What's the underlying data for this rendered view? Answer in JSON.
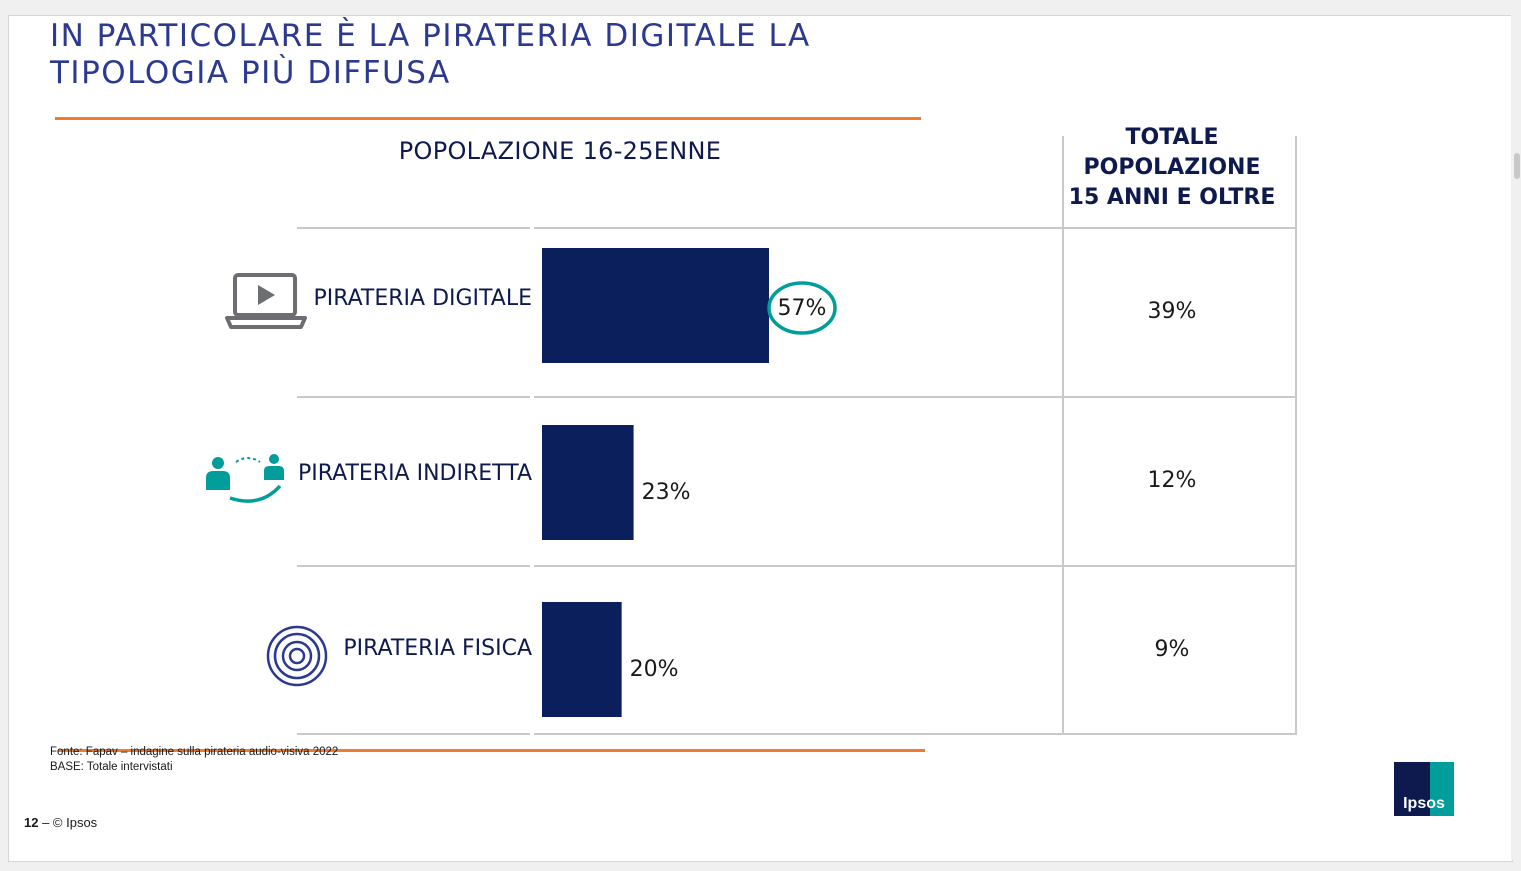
{
  "title": {
    "line1": "IN PARTICOLARE È LA PIRATERIA DIGITALE LA",
    "line2": "TIPOLOGIA PIÙ DIFFUSA"
  },
  "columns": {
    "left_header": "POPOLAZIONE 16-25ENNE",
    "right_header_line1": "TOTALE",
    "right_header_line2": "POPOLAZIONE",
    "right_header_line3": "15 ANNI E OLTRE"
  },
  "chart_data": {
    "type": "bar",
    "orientation": "horizontal",
    "categories": [
      "PIRATERIA DIGITALE",
      "PIRATERIA INDIRETTA",
      "PIRATERIA FISICA"
    ],
    "series": [
      {
        "name": "POPOLAZIONE 16-25ENNE",
        "values": [
          57,
          23,
          20
        ],
        "labels": [
          "57%",
          "23%",
          "20%"
        ],
        "color": "#0b1f5c"
      }
    ],
    "table_column": {
      "name": "TOTALE POPOLAZIONE 15 ANNI E OLTRE",
      "values": [
        "39%",
        "12%",
        "9%"
      ]
    },
    "highlight": {
      "category": "PIRATERIA DIGITALE",
      "color": "#009d9a"
    },
    "xlim": [
      0,
      100
    ],
    "grid": false,
    "legend": "none"
  },
  "rows": [
    {
      "label": "PIRATERIA DIGITALE",
      "icon": "laptop-play-icon",
      "total": "39%"
    },
    {
      "label": "PIRATERIA INDIRETTA",
      "icon": "people-exchange-icon",
      "total": "12%"
    },
    {
      "label": "PIRATERIA FISICA",
      "icon": "disc-icon",
      "total": "9%"
    }
  ],
  "source": {
    "line1": "Fonte: Fapav – indagine sulla pirateria audio-visiva 2022",
    "line2": "BASE: Totale intervistati"
  },
  "footer": {
    "page": "12",
    "copyright": " – © Ipsos"
  },
  "logo": {
    "text": "Ipsos"
  },
  "colors": {
    "accent_orange": "#f07c2e",
    "title_blue": "#2b3990",
    "bar_navy": "#0b1f5c",
    "teal": "#009d9a"
  }
}
